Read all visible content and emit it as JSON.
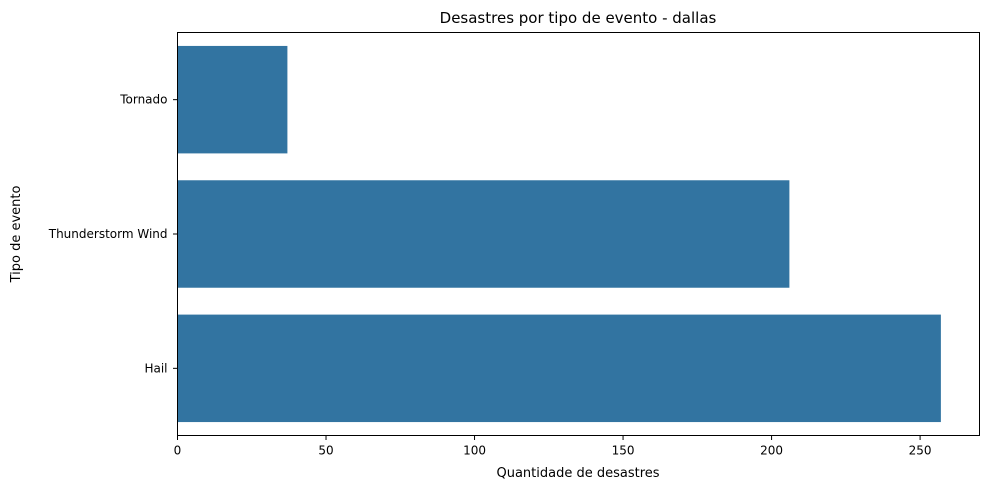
{
  "chart_data": {
    "type": "bar",
    "orientation": "horizontal",
    "title": "Desastres por tipo de evento - dallas",
    "xlabel": "Quantidade de desastres",
    "ylabel": "Tipo de evento",
    "categories": [
      "Tornado",
      "Thunderstorm Wind",
      "Hail"
    ],
    "values": [
      37,
      206,
      257
    ],
    "xlim": [
      0,
      270
    ],
    "xticks": [
      0,
      50,
      100,
      150,
      200,
      250
    ],
    "bar_color": "#3274a1",
    "grid": false,
    "legend": "none"
  }
}
